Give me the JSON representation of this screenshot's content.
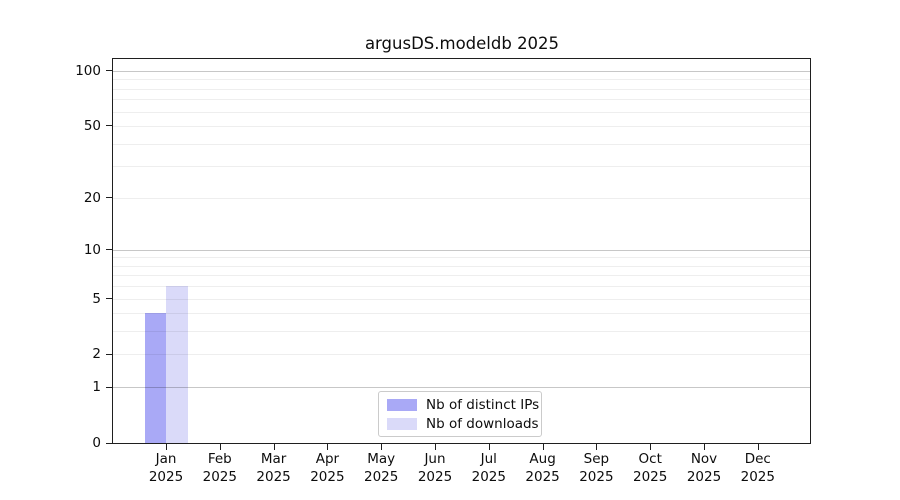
{
  "title": "argusDS.modeldb 2025",
  "chart_data": {
    "type": "bar",
    "title": "argusDS.modeldb 2025",
    "x": [
      "Jan",
      "Feb",
      "Mar",
      "Apr",
      "May",
      "Jun",
      "Jul",
      "Aug",
      "Sep",
      "Oct",
      "Nov",
      "Dec"
    ],
    "x_year": "2025",
    "categories": [
      "Jan 2025",
      "Feb 2025",
      "Mar 2025",
      "Apr 2025",
      "May 2025",
      "Jun 2025",
      "Jul 2025",
      "Aug 2025",
      "Sep 2025",
      "Oct 2025",
      "Nov 2025",
      "Dec 2025"
    ],
    "series": [
      {
        "name": "Nb of distinct IPs",
        "color": "#a9a9f6",
        "values": [
          4,
          0,
          0,
          0,
          0,
          0,
          0,
          0,
          0,
          0,
          0,
          0
        ]
      },
      {
        "name": "Nb of downloads",
        "color": "#dadaf9",
        "values": [
          6,
          0,
          0,
          0,
          0,
          0,
          0,
          0,
          0,
          0,
          0,
          0
        ]
      }
    ],
    "xlabel": "",
    "ylabel": "",
    "y_ticks": [
      0,
      1,
      2,
      5,
      10,
      20,
      50,
      100
    ],
    "y_scale": "log10(1+v)",
    "ylim": [
      0,
      116
    ],
    "y_major_gridlines": [
      1,
      10,
      100
    ],
    "y_minor_gridlines": [
      2,
      3,
      4,
      5,
      6,
      7,
      8,
      9,
      20,
      30,
      40,
      50,
      60,
      70,
      80,
      90
    ],
    "grid": true,
    "legend_position": "lower center"
  },
  "legend": {
    "items": [
      {
        "label": "Nb of distinct IPs",
        "color": "#a9a9f6"
      },
      {
        "label": "Nb of downloads",
        "color": "#dadaf9"
      }
    ]
  },
  "colors": {
    "background": "#ffffff",
    "spine": "#1f1f1f",
    "text": "#0d0d0d",
    "legend_border": "#cbcbcb"
  }
}
